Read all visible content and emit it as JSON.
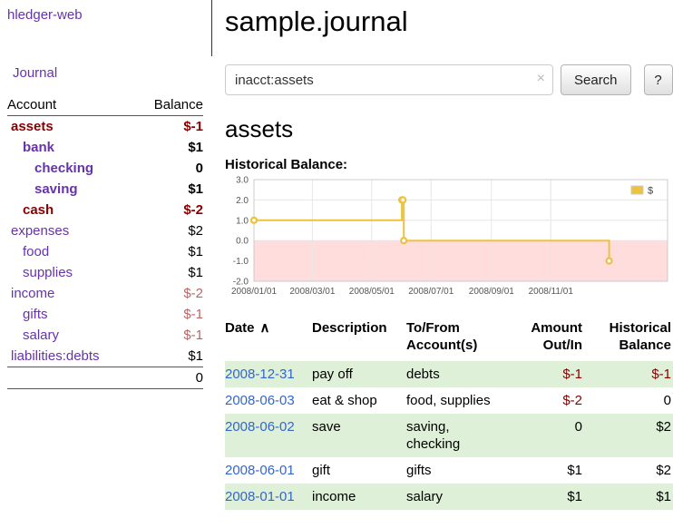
{
  "colors": {
    "link_purple": "#6633aa",
    "negative_dark": "#880000",
    "negative_light": "#bb6666",
    "date_link_blue": "#3366cc",
    "row_highlight_green": "#dff0d8",
    "chart_series_yellow": "#EDC240",
    "chart_negative_region": "#ffdddd"
  },
  "brand": {
    "label": "hledger-web"
  },
  "nav": {
    "journal": "Journal"
  },
  "sidebar": {
    "header": {
      "account": "Account",
      "balance": "Balance"
    },
    "accounts": [
      {
        "name": "assets",
        "depth": 1,
        "bold": true,
        "negative_name": true,
        "balance": "$-1",
        "balance_style": "negative-bold"
      },
      {
        "name": "bank",
        "depth": 2,
        "bold": true,
        "negative_name": false,
        "balance": "$1",
        "balance_style": "bold"
      },
      {
        "name": "checking",
        "depth": 3,
        "bold": true,
        "negative_name": false,
        "balance": "0",
        "balance_style": "bold"
      },
      {
        "name": "saving",
        "depth": 3,
        "bold": true,
        "negative_name": false,
        "balance": "$1",
        "balance_style": "bold"
      },
      {
        "name": "cash",
        "depth": 2,
        "bold": true,
        "negative_name": true,
        "balance": "$-2",
        "balance_style": "negative-bold"
      },
      {
        "name": "expenses",
        "depth": 1,
        "bold": false,
        "negative_name": false,
        "balance": "$2",
        "balance_style": "normal"
      },
      {
        "name": "food",
        "depth": 2,
        "bold": false,
        "negative_name": false,
        "balance": "$1",
        "balance_style": "normal"
      },
      {
        "name": "supplies",
        "depth": 2,
        "bold": false,
        "negative_name": false,
        "balance": "$1",
        "balance_style": "normal"
      },
      {
        "name": "income",
        "depth": 1,
        "bold": false,
        "negative_name": false,
        "balance": "$-2",
        "balance_style": "negative-light"
      },
      {
        "name": "gifts",
        "depth": 2,
        "bold": false,
        "negative_name": false,
        "balance": "$-1",
        "balance_style": "negative-light"
      },
      {
        "name": "salary",
        "depth": 2,
        "bold": false,
        "negative_name": false,
        "balance": "$-1",
        "balance_style": "negative-light"
      },
      {
        "name": "liabilities:debts",
        "depth": 1,
        "bold": false,
        "negative_name": false,
        "balance": "$1",
        "balance_style": "normal"
      }
    ],
    "total": "0"
  },
  "page": {
    "title": "sample.journal",
    "account_heading": "assets",
    "chart_label": "Historical Balance:"
  },
  "search": {
    "value": "inacct:assets",
    "clear_icon": "×",
    "button_label": "Search",
    "help_label": "?"
  },
  "chart_data": {
    "type": "line",
    "steps": true,
    "title": "Historical Balance",
    "series": [
      {
        "name": "$",
        "color": "#EDC240",
        "points": [
          {
            "date": "2008-01-01",
            "value": 1
          },
          {
            "date": "2008-06-01",
            "value": 2
          },
          {
            "date": "2008-06-02",
            "value": 2
          },
          {
            "date": "2008-06-03",
            "value": 0
          },
          {
            "date": "2008-12-31",
            "value": -1
          }
        ]
      }
    ],
    "x_axis": {
      "min": "2008-01-01",
      "max": "2009-03-01",
      "ticks": [
        {
          "date": "2008-01-01",
          "label": "2008/01/01"
        },
        {
          "date": "2008-03-01",
          "label": "2008/03/01"
        },
        {
          "date": "2008-05-01",
          "label": "2008/05/01"
        },
        {
          "date": "2008-07-01",
          "label": "2008/07/01"
        },
        {
          "date": "2008-09-01",
          "label": "2008/09/01"
        },
        {
          "date": "2008-11-01",
          "label": "2008/11/01"
        }
      ]
    },
    "y_axis": {
      "min": -2,
      "max": 3,
      "ticks": [
        {
          "value": 3,
          "label": "3.0"
        },
        {
          "value": 2,
          "label": "2.0"
        },
        {
          "value": 1,
          "label": "1.0"
        },
        {
          "value": 0,
          "label": "0.0"
        },
        {
          "value": -1,
          "label": "-1.0"
        },
        {
          "value": -2,
          "label": "-2.0"
        }
      ]
    },
    "legend": {
      "label": "$",
      "position": "top-right"
    },
    "grid": true,
    "negative_region": true
  },
  "register": {
    "headers": {
      "date": "Date",
      "sort_icon": "∧",
      "description": "Description",
      "accounts_line1": "To/From",
      "accounts_line2": "Account(s)",
      "amount_line1": "Amount",
      "amount_line2": "Out/In",
      "balance_line1": "Historical",
      "balance_line2": "Balance"
    },
    "rows": [
      {
        "date": "2008-12-31",
        "description": "pay off",
        "accounts": "debts",
        "amount": "$-1",
        "amount_negative": true,
        "balance": "$-1",
        "balance_negative": true,
        "highlight": true
      },
      {
        "date": "2008-06-03",
        "description": "eat & shop",
        "accounts": "food, supplies",
        "amount": "$-2",
        "amount_negative": true,
        "balance": "0",
        "balance_negative": false,
        "highlight": false
      },
      {
        "date": "2008-06-02",
        "description": "save",
        "accounts": "saving, checking",
        "amount": "0",
        "amount_negative": false,
        "balance": "$2",
        "balance_negative": false,
        "highlight": true
      },
      {
        "date": "2008-06-01",
        "description": "gift",
        "accounts": "gifts",
        "amount": "$1",
        "amount_negative": false,
        "balance": "$2",
        "balance_negative": false,
        "highlight": false
      },
      {
        "date": "2008-01-01",
        "description": "income",
        "accounts": "salary",
        "amount": "$1",
        "amount_negative": false,
        "balance": "$1",
        "balance_negative": false,
        "highlight": true
      }
    ]
  }
}
